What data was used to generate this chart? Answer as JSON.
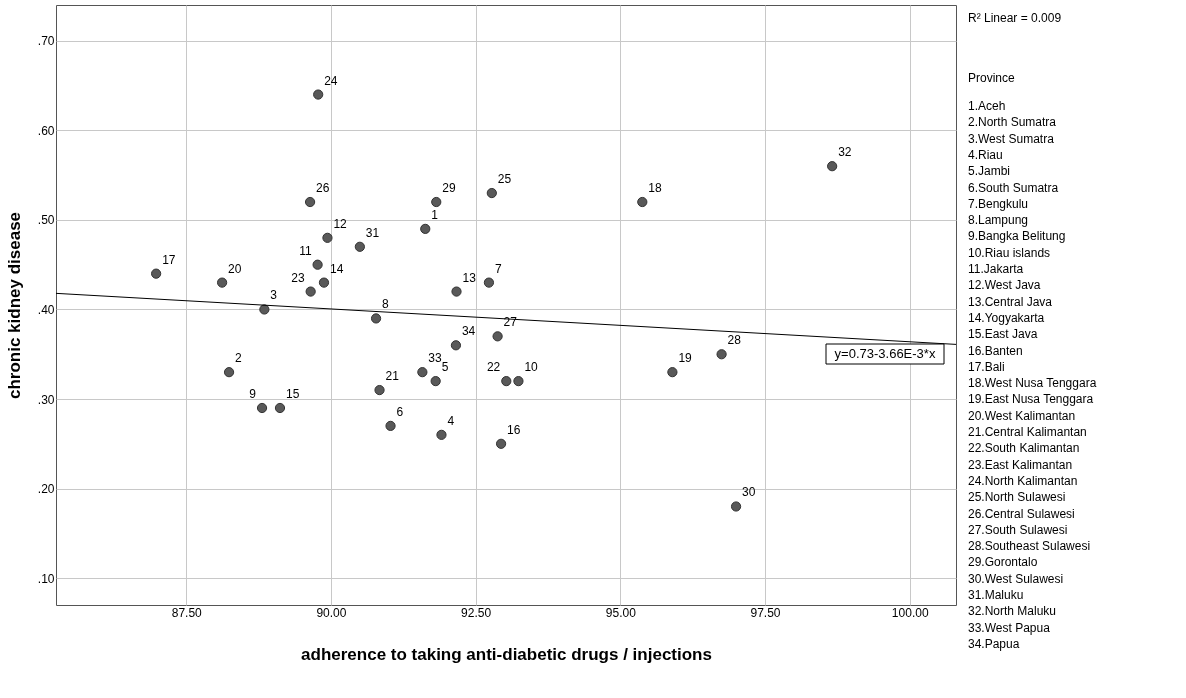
{
  "chart_data": {
    "type": "scatter",
    "xlabel": "adherence to taking anti-diabetic drugs / injections",
    "ylabel": "chronic kidney disease",
    "legend_title": "Province",
    "xlim": [
      85.25,
      100.8
    ],
    "ylim": [
      0.07,
      0.74
    ],
    "xticks": [
      {
        "value": 87.5,
        "label": "87.50"
      },
      {
        "value": 90,
        "label": "90.00"
      },
      {
        "value": 92.5,
        "label": "92.50"
      },
      {
        "value": 95,
        "label": "95.00"
      },
      {
        "value": 97.5,
        "label": "97.50"
      },
      {
        "value": 100,
        "label": "100.00"
      }
    ],
    "yticks": [
      {
        "value": 0.1,
        "label": ".10"
      },
      {
        "value": 0.2,
        "label": ".20"
      },
      {
        "value": 0.3,
        "label": ".30"
      },
      {
        "value": 0.4,
        "label": ".40"
      },
      {
        "value": 0.5,
        "label": ".50"
      },
      {
        "value": 0.6,
        "label": ".60"
      },
      {
        "value": 0.7,
        "label": ".70"
      }
    ],
    "grid": true,
    "series": [
      {
        "marker": "circle",
        "color": "#595959",
        "x": [
          91.63,
          88.24,
          88.85,
          91.91,
          91.81,
          91.03,
          92.73,
          90.78,
          88.81,
          93.24,
          89.77,
          89.94,
          92.17,
          89.88,
          89.12,
          92.94,
          86.98,
          95.38,
          95.9,
          88.12,
          90.84,
          93.03,
          89.65,
          89.78,
          92.78,
          89.64,
          92.88,
          96.75,
          91.82,
          97.0,
          90.5,
          98.66,
          91.58,
          92.16
        ],
        "values": [
          0.49,
          0.33,
          0.4,
          0.26,
          0.32,
          0.27,
          0.43,
          0.39,
          0.29,
          0.32,
          0.45,
          0.48,
          0.42,
          0.43,
          0.29,
          0.25,
          0.44,
          0.52,
          0.33,
          0.43,
          0.31,
          0.32,
          0.42,
          0.64,
          0.53,
          0.52,
          0.37,
          0.35,
          0.52,
          0.18,
          0.47,
          0.56,
          0.33,
          0.36
        ]
      },
      {
        "type": "line",
        "color": "#000000",
        "x": [
          85.25,
          100.8
        ],
        "values": [
          0.418,
          0.361
        ]
      }
    ],
    "annotations": [
      "R² Linear = 0.009",
      "y=0.73-3.66E-3*x",
      {
        "text": "1",
        "x": 91.63,
        "y": 0.49
      },
      {
        "text": "2",
        "x": 88.24,
        "y": 0.33
      },
      {
        "text": "3",
        "x": 88.85,
        "y": 0.4
      },
      {
        "text": "4",
        "x": 91.91,
        "y": 0.26
      },
      {
        "text": "5",
        "x": 91.81,
        "y": 0.32
      },
      {
        "text": "6",
        "x": 91.03,
        "y": 0.27
      },
      {
        "text": "7",
        "x": 92.73,
        "y": 0.43
      },
      {
        "text": "8",
        "x": 90.78,
        "y": 0.39
      },
      {
        "text": "9",
        "x": 88.81,
        "y": 0.29
      },
      {
        "text": "10",
        "x": 93.24,
        "y": 0.32
      },
      {
        "text": "11",
        "x": 89.77,
        "y": 0.45
      },
      {
        "text": "12",
        "x": 89.94,
        "y": 0.48
      },
      {
        "text": "13",
        "x": 92.17,
        "y": 0.42
      },
      {
        "text": "14",
        "x": 89.88,
        "y": 0.43
      },
      {
        "text": "15",
        "x": 89.12,
        "y": 0.29
      },
      {
        "text": "16",
        "x": 92.94,
        "y": 0.25
      },
      {
        "text": "17",
        "x": 86.98,
        "y": 0.44
      },
      {
        "text": "18",
        "x": 95.38,
        "y": 0.52
      },
      {
        "text": "19",
        "x": 95.9,
        "y": 0.33
      },
      {
        "text": "20",
        "x": 88.12,
        "y": 0.43
      },
      {
        "text": "21",
        "x": 90.84,
        "y": 0.31
      },
      {
        "text": "22",
        "x": 93.03,
        "y": 0.32
      },
      {
        "text": "23",
        "x": 89.65,
        "y": 0.42
      },
      {
        "text": "24",
        "x": 89.78,
        "y": 0.64
      },
      {
        "text": "25",
        "x": 92.78,
        "y": 0.53
      },
      {
        "text": "26",
        "x": 89.64,
        "y": 0.52
      },
      {
        "text": "27",
        "x": 92.88,
        "y": 0.37
      },
      {
        "text": "28",
        "x": 96.75,
        "y": 0.35
      },
      {
        "text": "29",
        "x": 91.82,
        "y": 0.52
      },
      {
        "text": "30",
        "x": 97.0,
        "y": 0.18
      },
      {
        "text": "31",
        "x": 90.5,
        "y": 0.47
      },
      {
        "text": "32",
        "x": 98.66,
        "y": 0.56
      },
      {
        "text": "33",
        "x": 91.58,
        "y": 0.33
      },
      {
        "text": "34",
        "x": 92.16,
        "y": 0.36
      },
      "1.Aceh",
      "2.North Sumatra",
      "3.West Sumatra",
      "4.Riau",
      "5.Jambi",
      "6.South Sumatra",
      "7.Bengkulu",
      "8.Lampung",
      "9.Bangka Belitung",
      "10.Riau islands",
      "11.Jakarta",
      "12.West Java",
      "13.Central Java",
      "14.Yogyakarta",
      "15.East Java",
      "16.Banten",
      "17.Bali",
      "18.West Nusa Tenggara",
      "19.East Nusa Tenggara",
      "20.West Kalimantan",
      "21.Central Kalimantan",
      "22.South Kalimantan",
      "23.East Kalimantan",
      "24.North Kalimantan",
      "25.North Sulawesi",
      "26.Central Sulawesi",
      "27.South Sulawesi",
      "28.Southeast Sulawesi",
      "29.Gorontalo",
      "30.West Sulawesi",
      "31.Maluku",
      "32.North Maluku",
      "33.West Papua",
      "34.Papua"
    ]
  }
}
